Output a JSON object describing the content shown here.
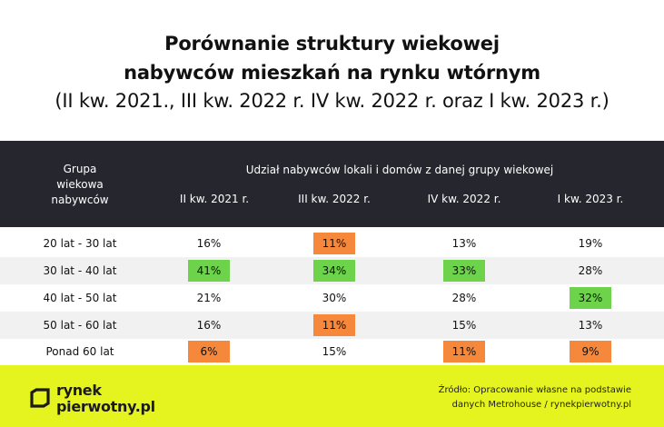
{
  "title": {
    "line1": "Porównanie struktury wiekowej",
    "line2": "nabywców mieszkań na rynku wtórnym",
    "subtitle": "(II kw. 2021., III kw. 2022 r. IV kw. 2022 r. oraz I kw. 2023 r.)"
  },
  "header": {
    "group_line1": "Grupa",
    "group_line2": "wiekowa",
    "group_line3": "nabywców",
    "span_label": "Udział nabywców lokali i domów z danej grupy wiekowej",
    "columns": [
      "II kw. 2021 r.",
      "III kw. 2022 r.",
      "IV kw. 2022 r.",
      "I kw. 2023 r."
    ]
  },
  "rows": [
    {
      "label": "20 lat - 30 lat",
      "values": [
        "16%",
        "11%",
        "13%",
        "19%"
      ],
      "highlight": [
        "",
        "orange",
        "",
        ""
      ]
    },
    {
      "label": "30 lat - 40 lat",
      "values": [
        "41%",
        "34%",
        "33%",
        "28%"
      ],
      "highlight": [
        "green",
        "green",
        "green",
        ""
      ]
    },
    {
      "label": "40 lat - 50 lat",
      "values": [
        "21%",
        "30%",
        "28%",
        "32%"
      ],
      "highlight": [
        "",
        "",
        "",
        "green"
      ]
    },
    {
      "label": "50 lat - 60 lat",
      "values": [
        "16%",
        "11%",
        "15%",
        "13%"
      ],
      "highlight": [
        "",
        "orange",
        "",
        ""
      ]
    },
    {
      "label": "Ponad 60 lat",
      "values": [
        "6%",
        "15%",
        "11%",
        "9%"
      ],
      "highlight": [
        "orange",
        "",
        "orange",
        "orange"
      ]
    }
  ],
  "colors": {
    "header_bg": "#25262e",
    "highlight_green": "#6dd34b",
    "highlight_orange": "#f5883b",
    "footer_bg": "#e5f41e",
    "alt_row_bg": "#f1f1f1"
  },
  "footer": {
    "logo_line1": "rynek",
    "logo_line2": "pierwotny.pl",
    "logo_icon": "bracket-square-icon",
    "source_line1": "Źródło: Opracowanie własne na podstawie",
    "source_line2": "danych Metrohouse / rynekpierwotny.pl"
  }
}
